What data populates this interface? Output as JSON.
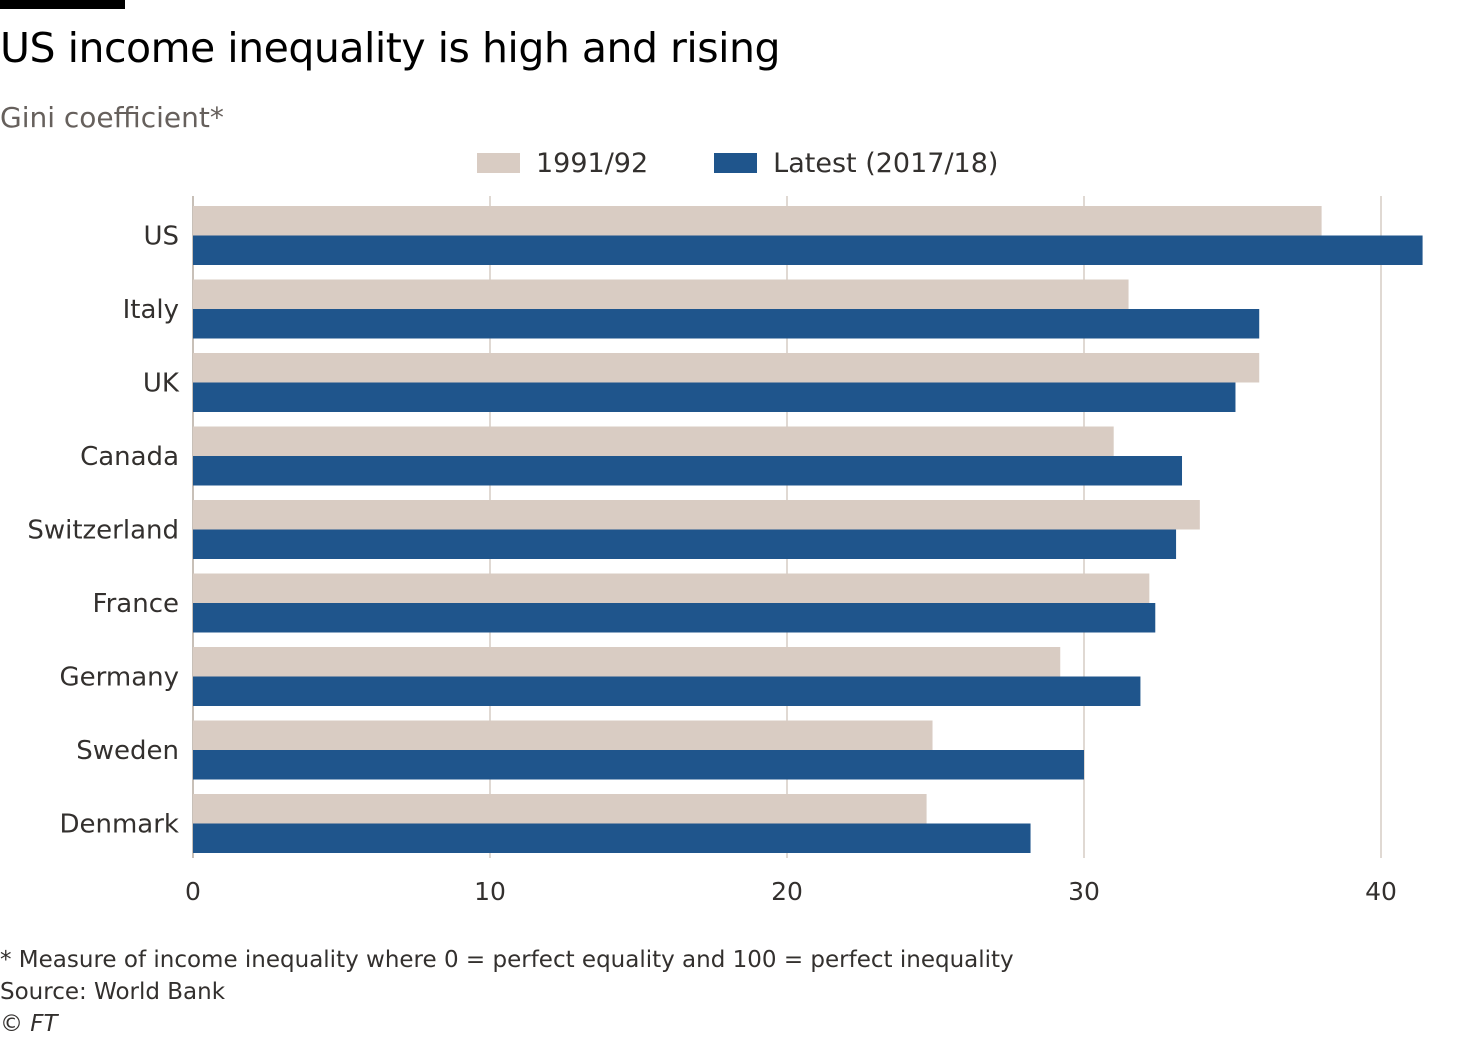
{
  "title": "US income inequality is high and rising",
  "subtitle": "Gini coefficient*",
  "footnotes": {
    "definition": "* Measure of income inequality where 0 = perfect equality and 100 = perfect inequality",
    "source": "Source: World Bank",
    "credit": "© FT"
  },
  "colors": {
    "series_1991": "#d9ccc3",
    "series_latest": "#1f558c",
    "grid": "#e0d9d3",
    "axis": "#c8c0b8",
    "text": "#33302e"
  },
  "chart_data": {
    "type": "bar",
    "orientation": "horizontal",
    "categories": [
      "US",
      "Italy",
      "UK",
      "Canada",
      "Switzerland",
      "France",
      "Germany",
      "Sweden",
      "Denmark"
    ],
    "series": [
      {
        "name": "1991/92",
        "values": [
          38.0,
          31.5,
          35.9,
          31.0,
          33.9,
          32.2,
          29.2,
          24.9,
          24.7
        ]
      },
      {
        "name": "Latest (2017/18)",
        "values": [
          41.4,
          35.9,
          35.1,
          33.3,
          33.1,
          32.4,
          31.9,
          30.0,
          28.2
        ]
      }
    ],
    "xlim": [
      0,
      42
    ],
    "xticks": [
      0,
      10,
      20,
      30,
      40
    ],
    "grid": true,
    "legend_position": "top-center",
    "xlabel": "",
    "ylabel": ""
  }
}
